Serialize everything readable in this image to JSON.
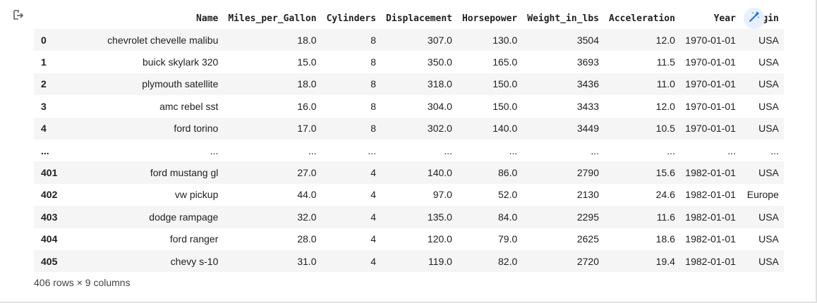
{
  "output": {
    "icon": "output-arrow-icon",
    "magic_icon": "magic-wand-icon",
    "accent_color": "#1a73e8"
  },
  "table": {
    "columns": [
      "",
      "Name",
      "Miles_per_Gallon",
      "Cylinders",
      "Displacement",
      "Horsepower",
      "Weight_in_lbs",
      "Acceleration",
      "Year",
      "Origin"
    ],
    "rows": [
      {
        "index": "0",
        "name": "chevrolet chevelle malibu",
        "mpg": "18.0",
        "cyl": "8",
        "disp": "307.0",
        "hp": "130.0",
        "wt": "3504",
        "acc": "12.0",
        "year": "1970-01-01",
        "origin": "USA"
      },
      {
        "index": "1",
        "name": "buick skylark 320",
        "mpg": "15.0",
        "cyl": "8",
        "disp": "350.0",
        "hp": "165.0",
        "wt": "3693",
        "acc": "11.5",
        "year": "1970-01-01",
        "origin": "USA"
      },
      {
        "index": "2",
        "name": "plymouth satellite",
        "mpg": "18.0",
        "cyl": "8",
        "disp": "318.0",
        "hp": "150.0",
        "wt": "3436",
        "acc": "11.0",
        "year": "1970-01-01",
        "origin": "USA"
      },
      {
        "index": "3",
        "name": "amc rebel sst",
        "mpg": "16.0",
        "cyl": "8",
        "disp": "304.0",
        "hp": "150.0",
        "wt": "3433",
        "acc": "12.0",
        "year": "1970-01-01",
        "origin": "USA"
      },
      {
        "index": "4",
        "name": "ford torino",
        "mpg": "17.0",
        "cyl": "8",
        "disp": "302.0",
        "hp": "140.0",
        "wt": "3449",
        "acc": "10.5",
        "year": "1970-01-01",
        "origin": "USA"
      },
      {
        "index": "...",
        "name": "...",
        "mpg": "...",
        "cyl": "...",
        "disp": "...",
        "hp": "...",
        "wt": "...",
        "acc": "...",
        "year": "...",
        "origin": "..."
      },
      {
        "index": "401",
        "name": "ford mustang gl",
        "mpg": "27.0",
        "cyl": "4",
        "disp": "140.0",
        "hp": "86.0",
        "wt": "2790",
        "acc": "15.6",
        "year": "1982-01-01",
        "origin": "USA"
      },
      {
        "index": "402",
        "name": "vw pickup",
        "mpg": "44.0",
        "cyl": "4",
        "disp": "97.0",
        "hp": "52.0",
        "wt": "2130",
        "acc": "24.6",
        "year": "1982-01-01",
        "origin": "Europe"
      },
      {
        "index": "403",
        "name": "dodge rampage",
        "mpg": "32.0",
        "cyl": "4",
        "disp": "135.0",
        "hp": "84.0",
        "wt": "2295",
        "acc": "11.6",
        "year": "1982-01-01",
        "origin": "USA"
      },
      {
        "index": "404",
        "name": "ford ranger",
        "mpg": "28.0",
        "cyl": "4",
        "disp": "120.0",
        "hp": "79.0",
        "wt": "2625",
        "acc": "18.6",
        "year": "1982-01-01",
        "origin": "USA"
      },
      {
        "index": "405",
        "name": "chevy s-10",
        "mpg": "31.0",
        "cyl": "4",
        "disp": "119.0",
        "hp": "82.0",
        "wt": "2720",
        "acc": "19.4",
        "year": "1982-01-01",
        "origin": "USA"
      }
    ]
  },
  "dimensions": "406 rows × 9 columns"
}
